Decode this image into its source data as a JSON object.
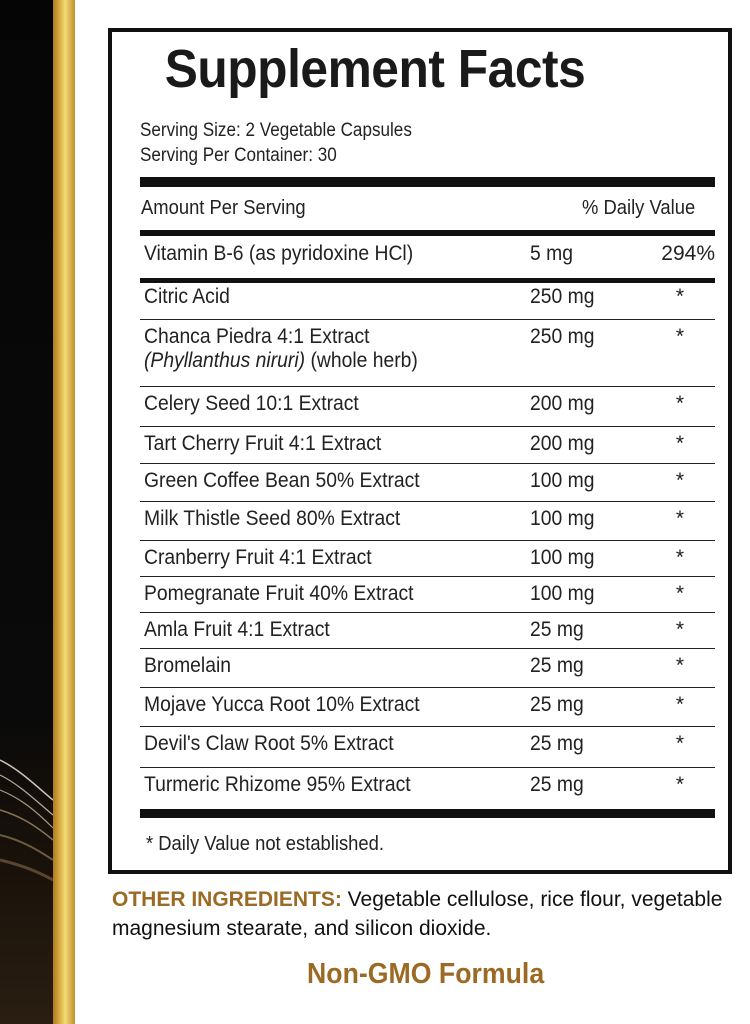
{
  "label": {
    "title": "Supplement Facts",
    "serving_size": "Serving Size: 2 Vegetable Capsules",
    "servings_per_container": "Serving Per Container: 30",
    "header_amount": "Amount Per Serving",
    "header_dv": "% Daily Value",
    "rows": [
      {
        "name": "Vitamin B-6 (as pyridoxine HCl)",
        "amount": "5 mg",
        "dv": "294%"
      },
      {
        "name": "Citric Acid",
        "amount": "250 mg",
        "dv": "*"
      },
      {
        "name": "Chanca Piedra 4:1 Extract",
        "sub_italic": "(Phyllanthus niruri)",
        "sub_plain": " (whole herb)",
        "amount": "250 mg",
        "dv": "*"
      },
      {
        "name": "Celery Seed 10:1 Extract",
        "amount": "200 mg",
        "dv": "*"
      },
      {
        "name": "Tart Cherry Fruit 4:1 Extract",
        "amount": "200 mg",
        "dv": "*"
      },
      {
        "name": "Green Coffee Bean 50% Extract",
        "amount": "100 mg",
        "dv": "*"
      },
      {
        "name": "Milk Thistle Seed 80% Extract",
        "amount": "100 mg",
        "dv": "*"
      },
      {
        "name": "Cranberry Fruit 4:1 Extract",
        "amount": "100 mg",
        "dv": "*"
      },
      {
        "name": "Pomegranate Fruit 40% Extract",
        "amount": "100 mg",
        "dv": "*"
      },
      {
        "name": "Amla Fruit 4:1 Extract",
        "amount": "25 mg",
        "dv": "*"
      },
      {
        "name": "Bromelain",
        "amount": "25 mg",
        "dv": "*"
      },
      {
        "name": "Mojave Yucca Root 10% Extract",
        "amount": "25 mg",
        "dv": "*"
      },
      {
        "name": "Devil's Claw Root 5% Extract",
        "amount": "25 mg",
        "dv": "*"
      },
      {
        "name": "Turmeric Rhizome 95% Extract",
        "amount": "25 mg",
        "dv": "*"
      }
    ],
    "footnote": "* Daily Value not established."
  },
  "other_ingredients": {
    "label": "OTHER INGREDIENTS:",
    "text": " Vegetable cellulose, rice flour, vegetable magnesium stearate, and silicon dioxide."
  },
  "tagline": "Non-GMO Formula",
  "colors": {
    "accent": "#9b6a24",
    "gold": "#e8c65a",
    "text": "#222222"
  }
}
